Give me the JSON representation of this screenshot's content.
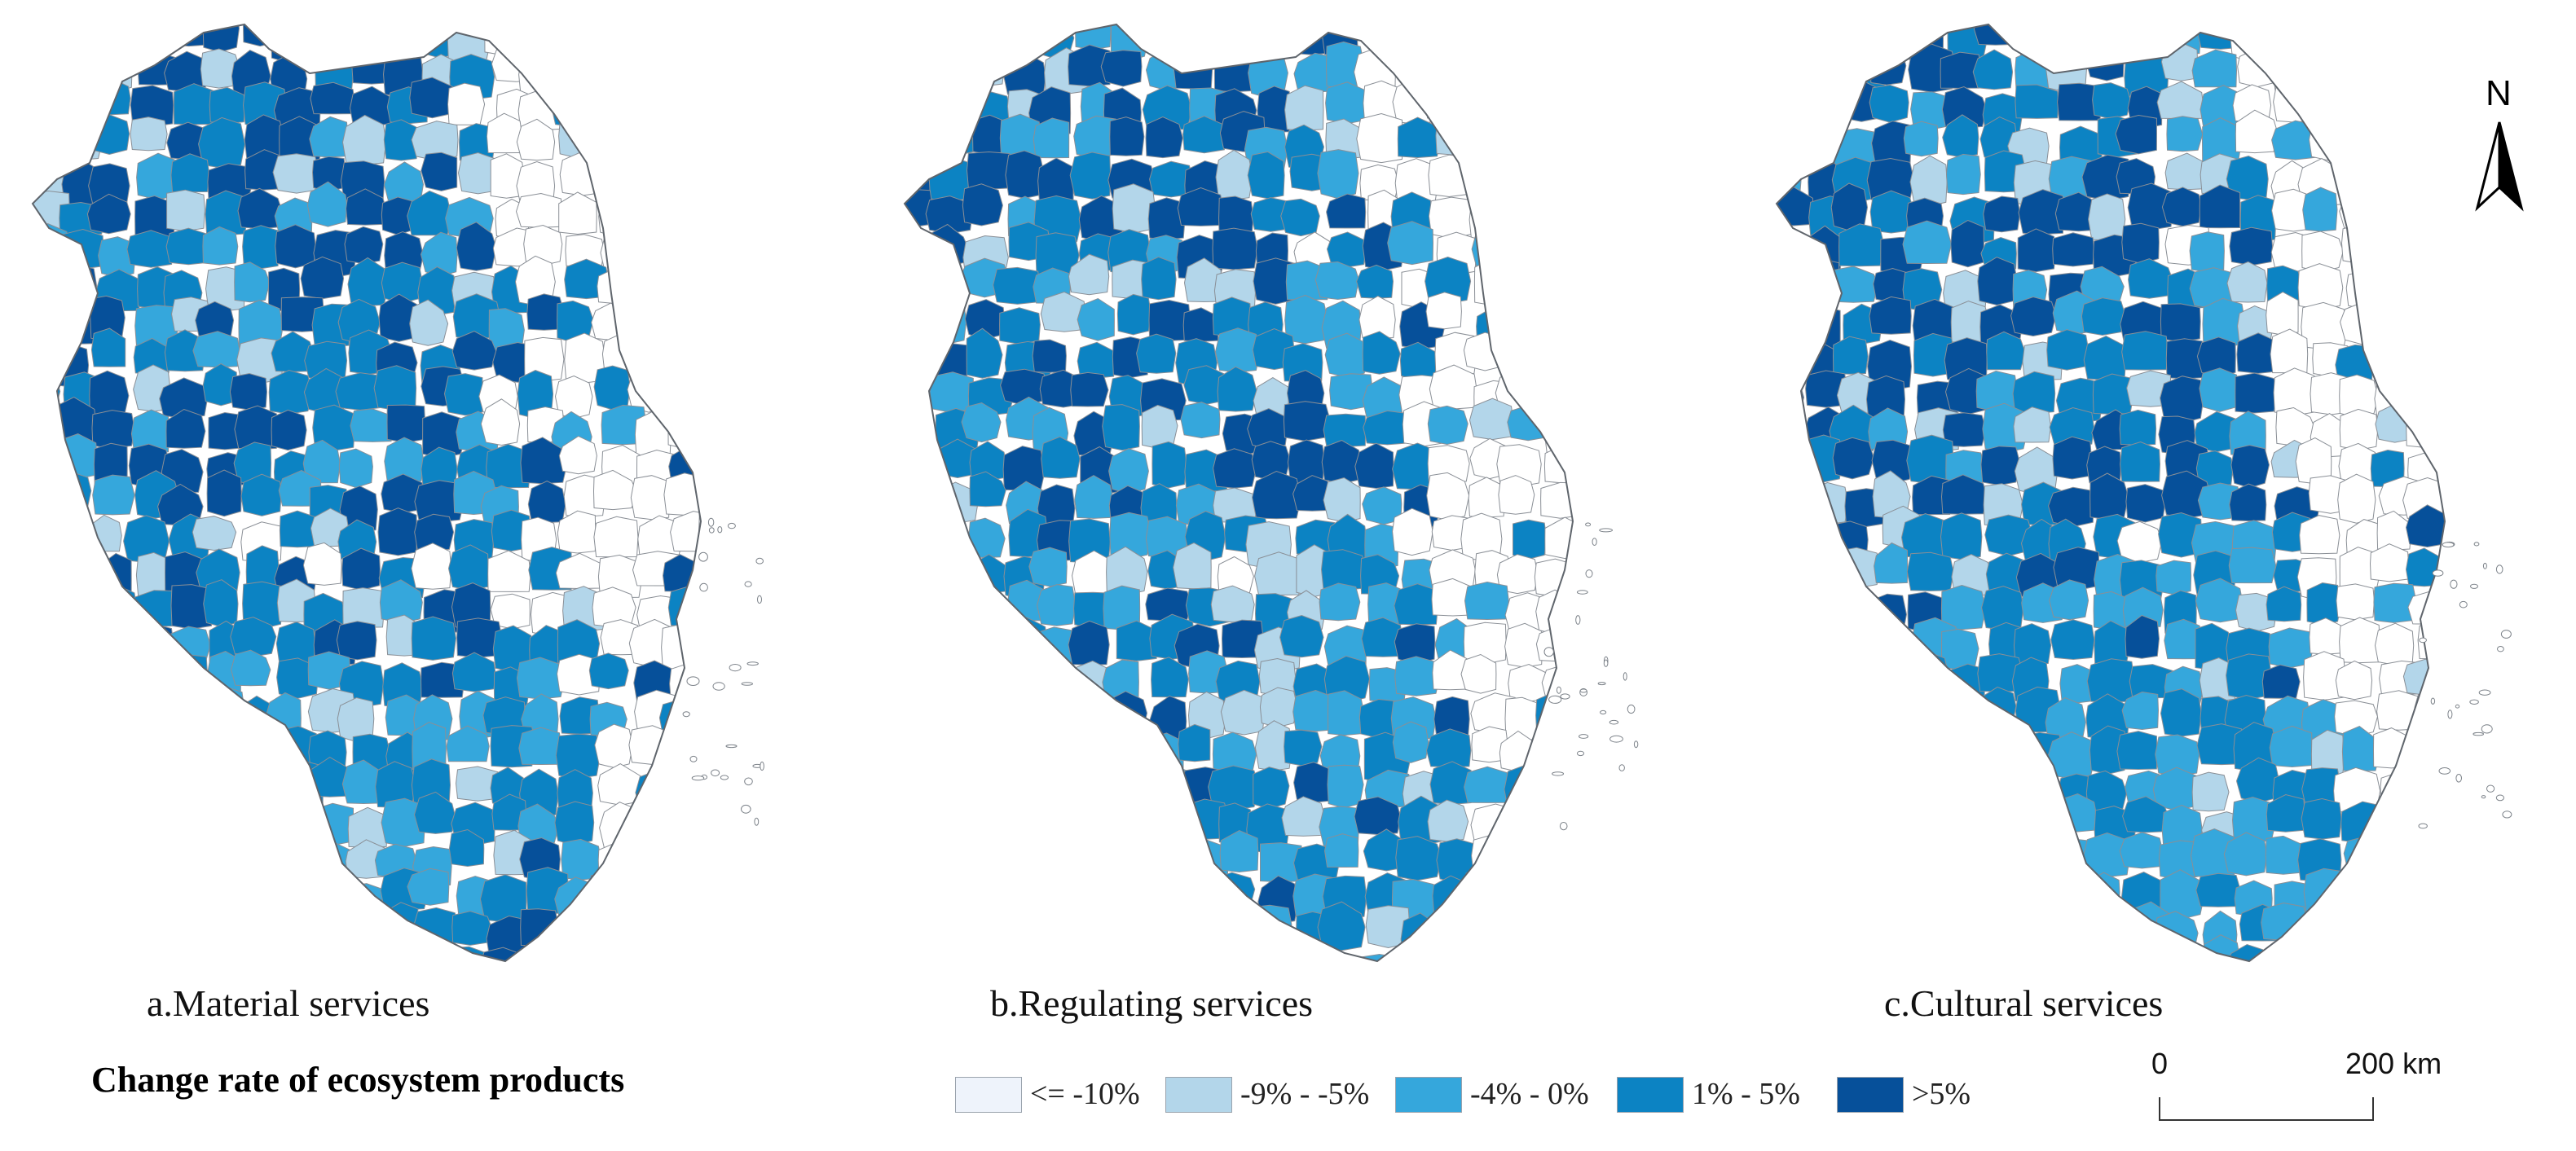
{
  "panels": [
    {
      "id": "a",
      "title": "a.Material services"
    },
    {
      "id": "b",
      "title": "b.Regulating services"
    },
    {
      "id": "c",
      "title": "c.Cultural services"
    }
  ],
  "legend": {
    "title": "Change rate of  ecosystem products",
    "classes": [
      {
        "label": "<= -10%",
        "color": "#eef3fb"
      },
      {
        "label": "-9% - -5%",
        "color": "#b3d6ea"
      },
      {
        "label": "-4% - 0%",
        "color": "#35a7dc"
      },
      {
        "label": "1% - 5%",
        "color": "#0c83c3"
      },
      {
        "label": ">5%",
        "color": "#06509a"
      }
    ]
  },
  "colors": {
    "outline": "#8a8f96",
    "no_data": "#ffffff"
  },
  "north_arrow": {
    "label": "N"
  },
  "scale_bar": {
    "start_label": "0",
    "end_label": "200 km"
  }
}
